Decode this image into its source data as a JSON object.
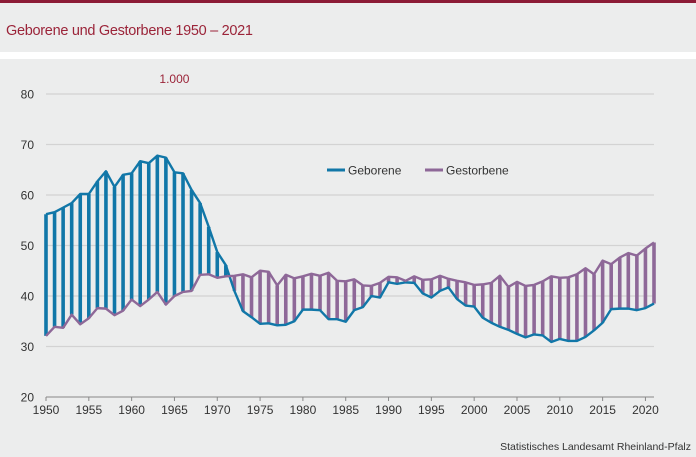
{
  "title": "Geborene und Gestorbene 1950 – 2021",
  "source": "Statistisches Landesamt Rheinland-Pfalz",
  "chart_data": {
    "type": "line",
    "title": "Geborene und Gestorbene 1950 – 2021",
    "unit_label": "1.000",
    "xlim": [
      1950,
      2021
    ],
    "ylim": [
      20,
      80
    ],
    "yticks": [
      20,
      30,
      40,
      50,
      60,
      70,
      80
    ],
    "xticks": [
      1950,
      1955,
      1960,
      1965,
      1970,
      1975,
      1980,
      1985,
      1990,
      1995,
      2000,
      2005,
      2010,
      2015,
      2020
    ],
    "grid": true,
    "legend_position": "top-center",
    "x": [
      1950,
      1951,
      1952,
      1953,
      1954,
      1955,
      1956,
      1957,
      1958,
      1959,
      1960,
      1961,
      1962,
      1963,
      1964,
      1965,
      1966,
      1967,
      1968,
      1969,
      1970,
      1971,
      1972,
      1973,
      1974,
      1975,
      1976,
      1977,
      1978,
      1979,
      1980,
      1981,
      1982,
      1983,
      1984,
      1985,
      1986,
      1987,
      1988,
      1989,
      1990,
      1991,
      1992,
      1993,
      1994,
      1995,
      1996,
      1997,
      1998,
      1999,
      2000,
      2001,
      2002,
      2003,
      2004,
      2005,
      2006,
      2007,
      2008,
      2009,
      2010,
      2011,
      2012,
      2013,
      2014,
      2015,
      2016,
      2017,
      2018,
      2019,
      2020,
      2021
    ],
    "series": [
      {
        "name": "Geborene",
        "color": "#1177a8",
        "values": [
          56.2,
          56.6,
          57.5,
          58.4,
          60.2,
          60.2,
          62.7,
          64.7,
          61.6,
          64.0,
          64.3,
          66.7,
          66.3,
          67.8,
          67.4,
          64.5,
          64.3,
          61.0,
          58.4,
          53.7,
          48.7,
          46.1,
          41.0,
          37.0,
          35.8,
          34.5,
          34.6,
          34.2,
          34.3,
          35.0,
          37.3,
          37.3,
          37.2,
          35.4,
          35.4,
          34.9,
          37.2,
          37.8,
          40.0,
          39.7,
          42.7,
          42.4,
          42.7,
          42.6,
          40.5,
          39.7,
          41.0,
          41.7,
          39.4,
          38.1,
          37.9,
          35.7,
          34.7,
          33.9,
          33.3,
          32.5,
          31.8,
          32.4,
          32.2,
          30.9,
          31.5,
          31.1,
          31.1,
          31.9,
          33.2,
          34.7,
          37.4,
          37.5,
          37.5,
          37.2,
          37.6,
          38.5
        ]
      },
      {
        "name": "Gestorbene",
        "color": "#8e6898",
        "values": [
          32.1,
          33.9,
          33.7,
          36.3,
          34.4,
          35.6,
          37.6,
          37.5,
          36.2,
          37.1,
          39.3,
          38.0,
          39.3,
          40.8,
          38.3,
          40.0,
          40.8,
          41.0,
          44.2,
          44.3,
          43.6,
          43.9,
          44.0,
          44.3,
          43.7,
          45.0,
          44.8,
          42.1,
          44.2,
          43.5,
          43.9,
          44.4,
          44.0,
          44.6,
          43.0,
          42.9,
          43.3,
          42.1,
          42.0,
          42.6,
          43.8,
          43.7,
          43.0,
          43.9,
          43.2,
          43.3,
          44.0,
          43.4,
          43.0,
          42.7,
          42.2,
          42.3,
          42.6,
          44.0,
          41.8,
          42.8,
          42.0,
          42.2,
          42.9,
          43.9,
          43.6,
          43.7,
          44.3,
          45.5,
          44.3,
          47.0,
          46.3,
          47.6,
          48.5,
          48.0,
          49.4,
          50.6
        ]
      }
    ]
  }
}
